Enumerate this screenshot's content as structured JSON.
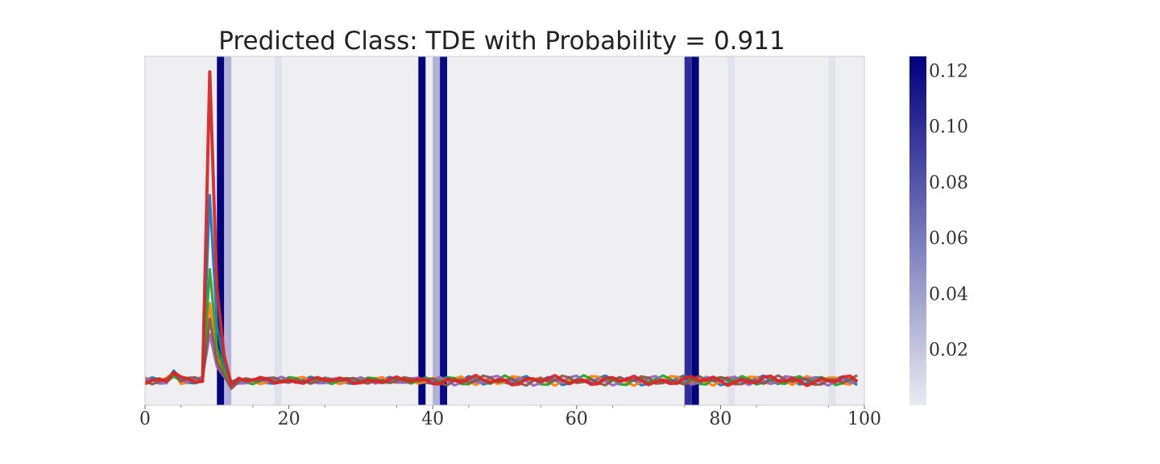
{
  "chart_data": {
    "type": "line",
    "title": "Predicted Class: TDE with Probability = 0.911",
    "xlabel": "",
    "ylabel": "",
    "xlim": [
      0,
      100
    ],
    "x_ticks": [
      "0",
      "20",
      "40",
      "60",
      "80",
      "100"
    ],
    "y_ticks": [],
    "grid": false,
    "background": "#efeff2",
    "attention_map": {
      "description_colors": [
        "#eaeaf2",
        "#000080"
      ],
      "range": [
        0,
        0.125
      ],
      "colorbar_ticks": [
        "0.02",
        "0.04",
        "0.06",
        "0.08",
        "0.10",
        "0.12"
      ],
      "bands": [
        {
          "x": 10.5,
          "value": 0.125
        },
        {
          "x": 11.5,
          "value": 0.03
        },
        {
          "x": 18.5,
          "value": 0.005
        },
        {
          "x": 38.5,
          "value": 0.125
        },
        {
          "x": 40.5,
          "value": 0.03
        },
        {
          "x": 41.5,
          "value": 0.12
        },
        {
          "x": 75.5,
          "value": 0.1
        },
        {
          "x": 76.5,
          "value": 0.125
        },
        {
          "x": 81.5,
          "value": 0.005
        },
        {
          "x": 95.5,
          "value": 0.004
        }
      ]
    },
    "ylim": [
      -0.8,
      10.5
    ],
    "series": [
      {
        "color": "#1f77b4",
        "peak": 6.0
      },
      {
        "color": "#ff7f0e",
        "peak": 2.5
      },
      {
        "color": "#2ca02c",
        "peak": 3.6
      },
      {
        "color": "#9467bd",
        "peak": 1.5
      },
      {
        "color": "#8c564b",
        "peak": 2.0
      },
      {
        "color": "#d62728",
        "peak": 10.0
      }
    ]
  }
}
